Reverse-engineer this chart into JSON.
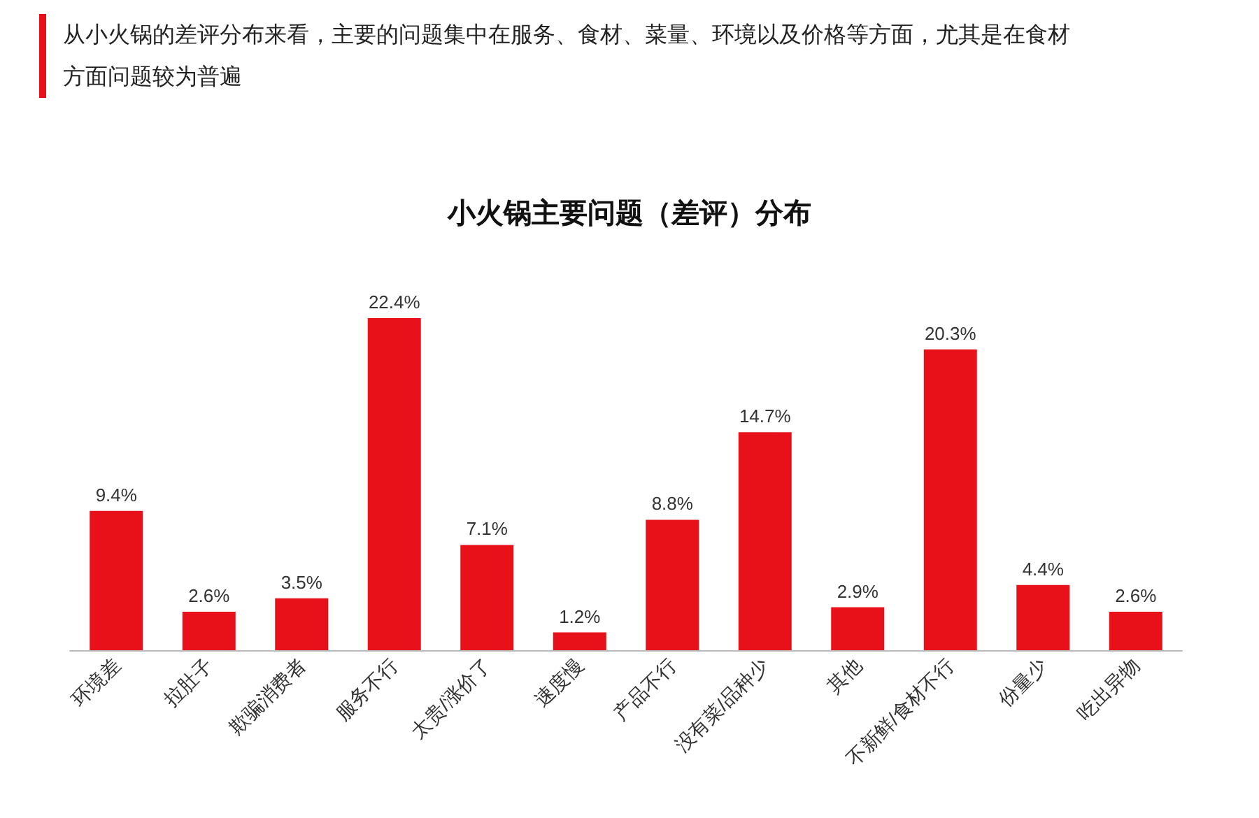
{
  "chart_data": {
    "type": "bar",
    "title": "小火锅主要问题（差评）分布",
    "subtitle": "从小火锅的差评分布来看，主要的问题集中在服务、食材、菜量、环境以及价格等方面，尤其是在食材方面问题较为普遍",
    "categories": [
      "环境差",
      "拉肚子",
      "欺骗消费者",
      "服务不行",
      "太贵/涨价了",
      "速度慢",
      "产品不行",
      "没有菜/品种少",
      "其他",
      "不新鲜/食材不行",
      "份量少",
      "吃出异物"
    ],
    "values": [
      9.4,
      2.6,
      3.5,
      22.4,
      7.1,
      1.2,
      8.8,
      14.7,
      2.9,
      20.3,
      4.4,
      2.6
    ],
    "value_labels": [
      "9.4%",
      "2.6%",
      "3.5%",
      "22.4%",
      "7.1%",
      "1.2%",
      "8.8%",
      "14.7%",
      "2.9%",
      "20.3%",
      "4.4%",
      "2.6%"
    ],
    "color": "#e8111a"
  }
}
